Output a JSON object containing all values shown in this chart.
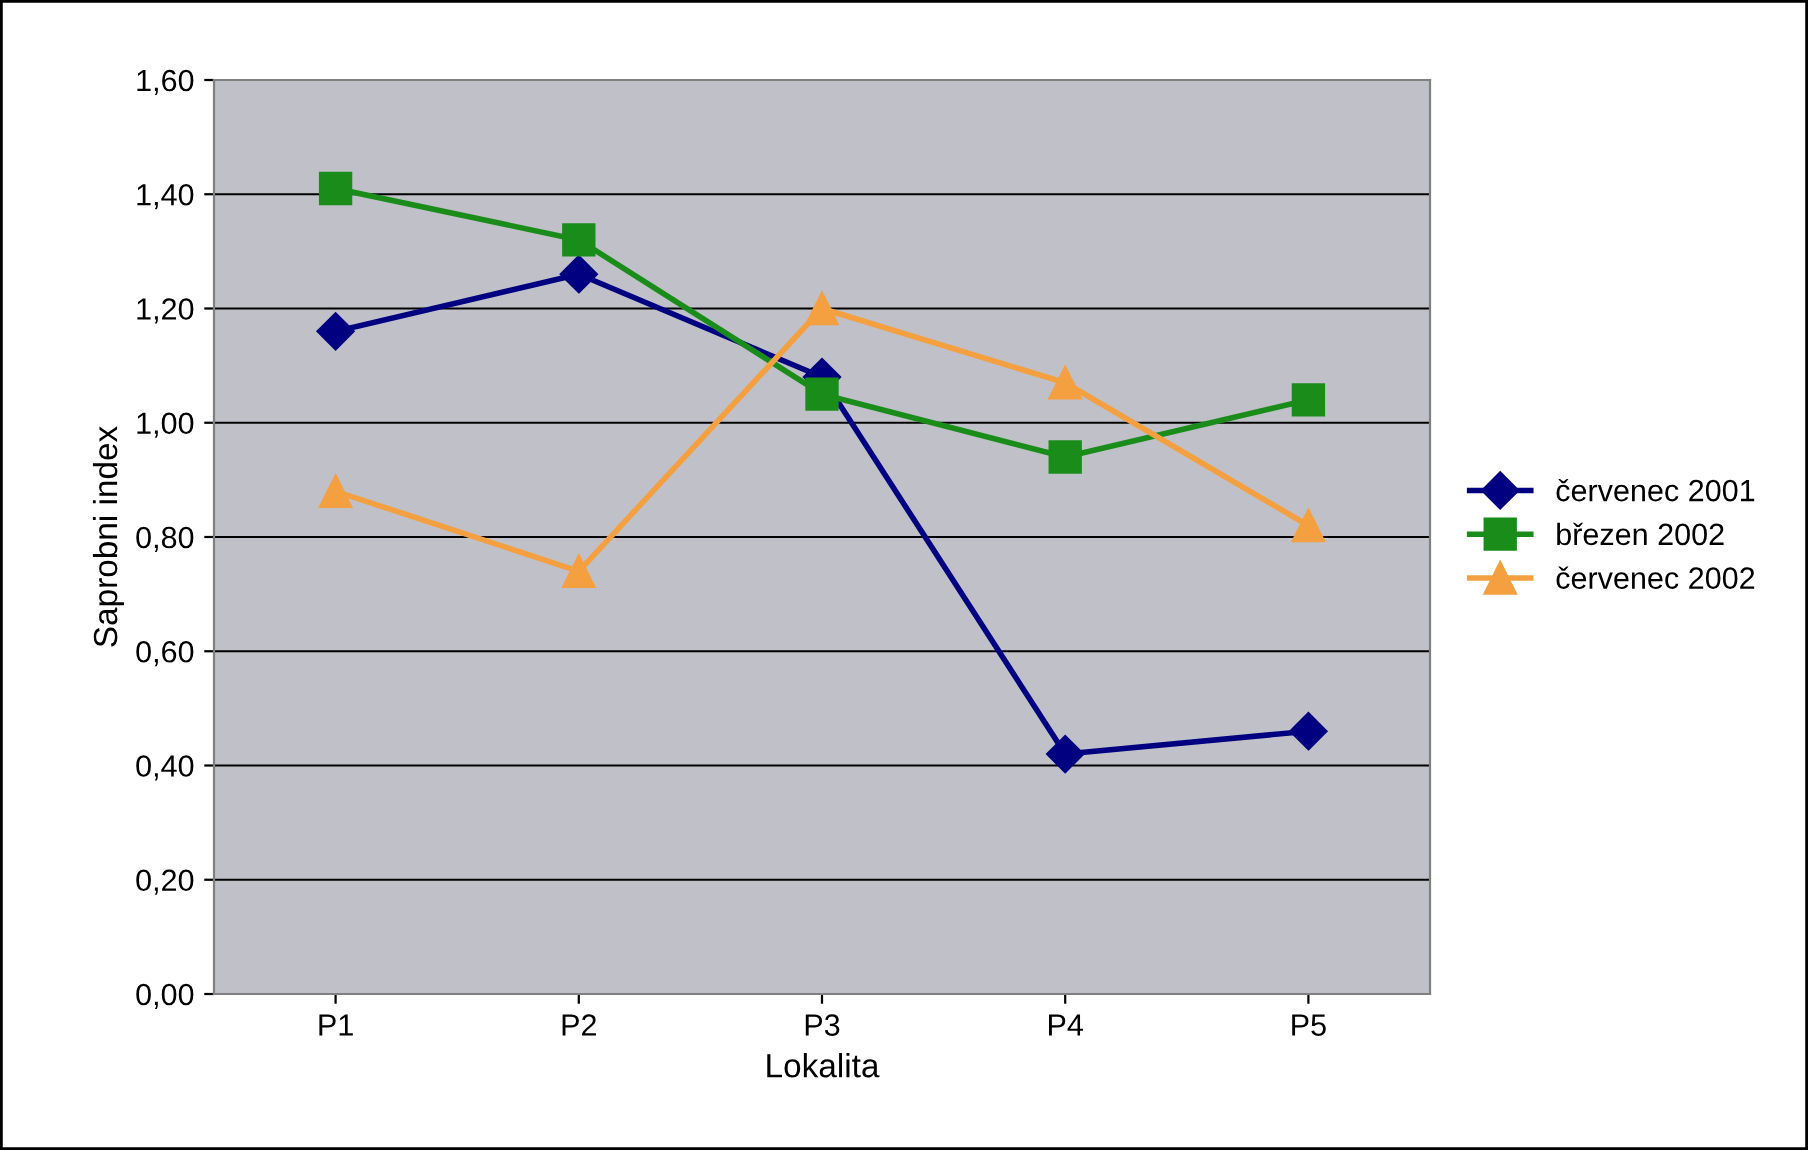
{
  "chart_data": {
    "type": "line",
    "xlabel": "Lokalita",
    "ylabel": "Saprobni index",
    "categories": [
      "P1",
      "P2",
      "P3",
      "P4",
      "P5"
    ],
    "series": [
      {
        "name": "červenec 2001",
        "color": "#000080",
        "marker": "diamond",
        "values": [
          1.16,
          1.26,
          1.08,
          0.42,
          0.46
        ]
      },
      {
        "name": "březen 2002",
        "color": "#1a8c1a",
        "marker": "square",
        "values": [
          1.41,
          1.32,
          1.05,
          0.94,
          1.04
        ]
      },
      {
        "name": "červenec 2002",
        "color": "#f4a040",
        "marker": "triangle",
        "values": [
          0.88,
          0.74,
          1.2,
          1.07,
          0.82
        ]
      }
    ],
    "ylim": [
      0,
      1.6
    ],
    "yticks": [
      {
        "value": 0,
        "label": "0,00"
      },
      {
        "value": 0.2,
        "label": "0,20"
      },
      {
        "value": 0.4,
        "label": "0,40"
      },
      {
        "value": 0.6,
        "label": "0,60"
      },
      {
        "value": 0.8,
        "label": "0,80"
      },
      {
        "value": 1.0,
        "label": "1,00"
      },
      {
        "value": 1.2,
        "label": "1,20"
      },
      {
        "value": 1.4,
        "label": "1,40"
      },
      {
        "value": 1.6,
        "label": "1,60"
      }
    ],
    "grid": "y",
    "legend": "right",
    "line_style": "solid"
  }
}
